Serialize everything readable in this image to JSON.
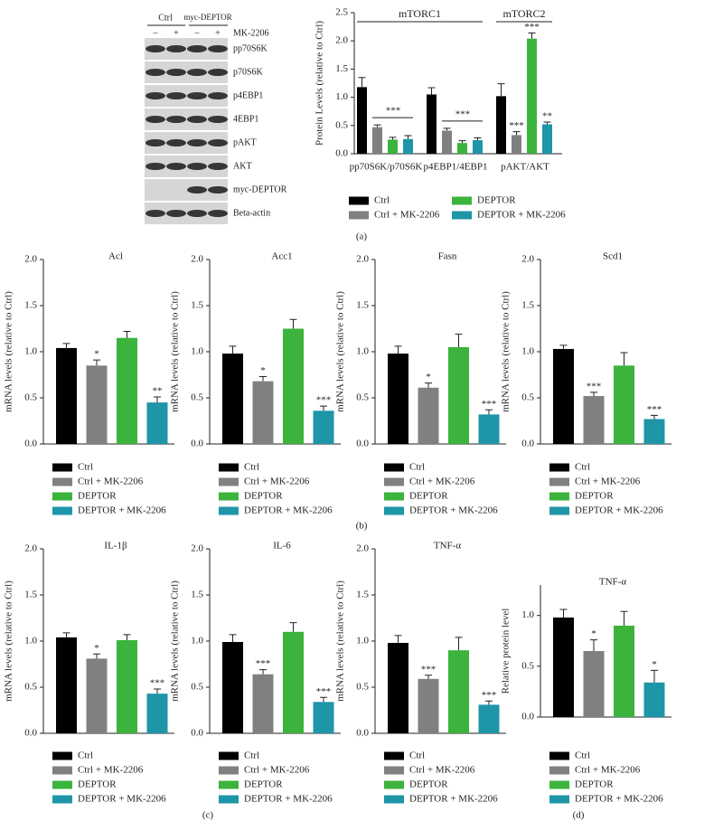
{
  "blot": {
    "lane_groups": [
      "Ctrl",
      "myc-DEPTOR"
    ],
    "treatment": "MK-2206",
    "lane_signs": [
      "–",
      "+",
      "–",
      "+"
    ],
    "rows": [
      "pp70S6K",
      "p70S6K",
      "p4EBP1",
      "4EBP1",
      "pAKT",
      "AKT",
      "myc-DEPTOR",
      "Beta-actin"
    ]
  },
  "panel_labels": [
    "(a)",
    "(b)",
    "(c)",
    "(d)"
  ],
  "chart_data": [
    {
      "type": "grouped-bar",
      "ylabel": "Protein Levels (relative to Ctrl)",
      "group_labels": [
        "mTORC1",
        "mTORC2"
      ],
      "categories": [
        "pp70S6K/p70S6K",
        "p4EBP1/4EBP1",
        "pAKT/AKT"
      ],
      "ylim": [
        0,
        2.5
      ],
      "yticks": [
        {
          "value": 0,
          "label": "0.0"
        },
        0.5,
        {
          "value": 1,
          "label": "1.0"
        },
        1.5,
        {
          "value": 2,
          "label": "2.0"
        },
        2.5
      ],
      "brackets": [
        {
          "category": 0,
          "label": "***"
        },
        {
          "category": 1,
          "label": "***"
        }
      ],
      "series": [
        {
          "name": "Ctrl",
          "color": "#000000",
          "values": [
            1.18,
            1.05,
            1.02
          ],
          "errors": [
            0.17,
            0.12,
            0.22
          ]
        },
        {
          "name": "Ctrl + MK-2206",
          "color": "#808080",
          "values": [
            0.47,
            0.41,
            0.33
          ],
          "errors": [
            0.04,
            0.04,
            0.06
          ],
          "significance": [
            null,
            null,
            "***"
          ]
        },
        {
          "name": "DEPTOR",
          "color": "#3cb33c",
          "values": [
            0.25,
            0.19,
            2.04
          ],
          "errors": [
            0.04,
            0.04,
            0.1
          ],
          "significance": [
            null,
            null,
            "***"
          ]
        },
        {
          "name": "DEPTOR + MK-2206",
          "color": "#1f95a8",
          "values": [
            0.26,
            0.24,
            0.52
          ],
          "errors": [
            0.06,
            0.04,
            0.04
          ],
          "significance": [
            null,
            null,
            "**"
          ]
        }
      ]
    },
    {
      "type": "bar",
      "title": "Acl",
      "ylabel": "mRNA levels (relative to Ctrl)",
      "ylim": [
        0,
        2
      ],
      "yticks": [
        {
          "value": 0,
          "label": "0.0"
        },
        0.5,
        {
          "value": 1,
          "label": "1.0"
        },
        1.5,
        {
          "value": 2,
          "label": "2.0"
        }
      ],
      "series": [
        {
          "name": "Ctrl",
          "color": "#000000",
          "values": [
            1.04
          ],
          "errors": [
            0.05
          ]
        },
        {
          "name": "Ctrl + MK-2206",
          "color": "#808080",
          "values": [
            0.85
          ],
          "errors": [
            0.06
          ],
          "significance": [
            "*"
          ]
        },
        {
          "name": "DEPTOR",
          "color": "#3cb33c",
          "values": [
            1.15
          ],
          "errors": [
            0.07
          ]
        },
        {
          "name": "DEPTOR + MK-2206",
          "color": "#1f95a8",
          "values": [
            0.45
          ],
          "errors": [
            0.06
          ],
          "significance": [
            "**"
          ]
        }
      ]
    },
    {
      "type": "bar",
      "title": "Acc1",
      "ylabel": "mRNA levels (relative to Ctrl)",
      "ylim": [
        0,
        2
      ],
      "yticks": [
        {
          "value": 0,
          "label": "0.0"
        },
        0.5,
        {
          "value": 1,
          "label": "1.0"
        },
        1.5,
        {
          "value": 2,
          "label": "2.0"
        }
      ],
      "series": [
        {
          "name": "Ctrl",
          "color": "#000000",
          "values": [
            0.98
          ],
          "errors": [
            0.08
          ]
        },
        {
          "name": "Ctrl + MK-2206",
          "color": "#808080",
          "values": [
            0.68
          ],
          "errors": [
            0.05
          ],
          "significance": [
            "*"
          ]
        },
        {
          "name": "DEPTOR",
          "color": "#3cb33c",
          "values": [
            1.25
          ],
          "errors": [
            0.1
          ]
        },
        {
          "name": "DEPTOR + MK-2206",
          "color": "#1f95a8",
          "values": [
            0.36
          ],
          "errors": [
            0.05
          ],
          "significance": [
            "***"
          ]
        }
      ]
    },
    {
      "type": "bar",
      "title": "Fasn",
      "ylabel": "mRNA levels (relative to Ctrl)",
      "ylim": [
        0,
        2
      ],
      "yticks": [
        {
          "value": 0,
          "label": "0.0"
        },
        0.5,
        {
          "value": 1,
          "label": "1.0"
        },
        1.5,
        {
          "value": 2,
          "label": "2.0"
        }
      ],
      "series": [
        {
          "name": "Ctrl",
          "color": "#000000",
          "values": [
            0.98
          ],
          "errors": [
            0.08
          ]
        },
        {
          "name": "Ctrl + MK-2206",
          "color": "#808080",
          "values": [
            0.61
          ],
          "errors": [
            0.05
          ],
          "significance": [
            "*"
          ]
        },
        {
          "name": "DEPTOR",
          "color": "#3cb33c",
          "values": [
            1.05
          ],
          "errors": [
            0.14
          ]
        },
        {
          "name": "DEPTOR + MK-2206",
          "color": "#1f95a8",
          "values": [
            0.32
          ],
          "errors": [
            0.05
          ],
          "significance": [
            "***"
          ]
        }
      ]
    },
    {
      "type": "bar",
      "title": "Scd1",
      "ylabel": "mRNA levels (relative to Ctrl)",
      "ylim": [
        0,
        2
      ],
      "yticks": [
        {
          "value": 0,
          "label": "0.0"
        },
        0.5,
        {
          "value": 1,
          "label": "1.0"
        },
        1.5,
        {
          "value": 2,
          "label": "2.0"
        }
      ],
      "series": [
        {
          "name": "Ctrl",
          "color": "#000000",
          "values": [
            1.03
          ],
          "errors": [
            0.04
          ]
        },
        {
          "name": "Ctrl + MK-2206",
          "color": "#808080",
          "values": [
            0.52
          ],
          "errors": [
            0.04
          ],
          "significance": [
            "***"
          ]
        },
        {
          "name": "DEPTOR",
          "color": "#3cb33c",
          "values": [
            0.85
          ],
          "errors": [
            0.14
          ]
        },
        {
          "name": "DEPTOR + MK-2206",
          "color": "#1f95a8",
          "values": [
            0.27
          ],
          "errors": [
            0.04
          ],
          "significance": [
            "***"
          ]
        }
      ]
    },
    {
      "type": "bar",
      "title": "IL-1β",
      "ylabel": "mRNA levels (relative to Ctrl)",
      "ylim": [
        0,
        2
      ],
      "yticks": [
        {
          "value": 0,
          "label": "0.0"
        },
        0.5,
        {
          "value": 1,
          "label": "1.0"
        },
        1.5,
        {
          "value": 2,
          "label": "2.0"
        }
      ],
      "series": [
        {
          "name": "Ctrl",
          "color": "#000000",
          "values": [
            1.04
          ],
          "errors": [
            0.05
          ]
        },
        {
          "name": "Ctrl + MK-2206",
          "color": "#808080",
          "values": [
            0.81
          ],
          "errors": [
            0.05
          ],
          "significance": [
            "*"
          ]
        },
        {
          "name": "DEPTOR",
          "color": "#3cb33c",
          "values": [
            1.01
          ],
          "errors": [
            0.06
          ]
        },
        {
          "name": "DEPTOR + MK-2206",
          "color": "#1f95a8",
          "values": [
            0.43
          ],
          "errors": [
            0.05
          ],
          "significance": [
            "***"
          ]
        }
      ]
    },
    {
      "type": "bar",
      "title": "IL-6",
      "ylabel": "mRNA levels (relative to Ctrl)",
      "ylim": [
        0,
        2
      ],
      "yticks": [
        {
          "value": 0,
          "label": "0.0"
        },
        0.5,
        {
          "value": 1,
          "label": "1.0"
        },
        1.5,
        {
          "value": 2,
          "label": "2.0"
        }
      ],
      "series": [
        {
          "name": "Ctrl",
          "color": "#000000",
          "values": [
            0.99
          ],
          "errors": [
            0.08
          ]
        },
        {
          "name": "Ctrl + MK-2206",
          "color": "#808080",
          "values": [
            0.64
          ],
          "errors": [
            0.05
          ],
          "significance": [
            "***"
          ]
        },
        {
          "name": "DEPTOR",
          "color": "#3cb33c",
          "values": [
            1.1
          ],
          "errors": [
            0.1
          ]
        },
        {
          "name": "DEPTOR + MK-2206",
          "color": "#1f95a8",
          "values": [
            0.34
          ],
          "errors": [
            0.05
          ],
          "significance": [
            "***"
          ]
        }
      ]
    },
    {
      "type": "bar",
      "title": "TNF-α",
      "ylabel": "mRNA levels (relative to Ctrl)",
      "ylim": [
        0,
        2
      ],
      "yticks": [
        {
          "value": 0,
          "label": "0.0"
        },
        0.5,
        {
          "value": 1,
          "label": "1.0"
        },
        1.5,
        {
          "value": 2,
          "label": "2.0"
        }
      ],
      "series": [
        {
          "name": "Ctrl",
          "color": "#000000",
          "values": [
            0.98
          ],
          "errors": [
            0.08
          ]
        },
        {
          "name": "Ctrl + MK-2206",
          "color": "#808080",
          "values": [
            0.59
          ],
          "errors": [
            0.04
          ],
          "significance": [
            "***"
          ]
        },
        {
          "name": "DEPTOR",
          "color": "#3cb33c",
          "values": [
            0.9
          ],
          "errors": [
            0.14
          ]
        },
        {
          "name": "DEPTOR + MK-2206",
          "color": "#1f95a8",
          "values": [
            0.31
          ],
          "errors": [
            0.04
          ],
          "significance": [
            "***"
          ]
        }
      ]
    },
    {
      "type": "bar",
      "title": "TNF-α",
      "ylabel": "Relative protein level",
      "ylim": [
        0,
        1.3
      ],
      "yticks": [
        {
          "value": 0,
          "label": "0.0"
        },
        0.5,
        {
          "value": 1,
          "label": "1.0"
        }
      ],
      "series": [
        {
          "name": "Ctrl",
          "color": "#000000",
          "values": [
            0.98
          ],
          "errors": [
            0.08
          ]
        },
        {
          "name": "Ctrl + MK-2206",
          "color": "#808080",
          "values": [
            0.65
          ],
          "errors": [
            0.11
          ],
          "significance": [
            "*"
          ]
        },
        {
          "name": "DEPTOR",
          "color": "#3cb33c",
          "values": [
            0.9
          ],
          "errors": [
            0.14
          ]
        },
        {
          "name": "DEPTOR + MK-2206",
          "color": "#1f95a8",
          "values": [
            0.34
          ],
          "errors": [
            0.12
          ],
          "significance": [
            "*"
          ]
        }
      ]
    }
  ]
}
